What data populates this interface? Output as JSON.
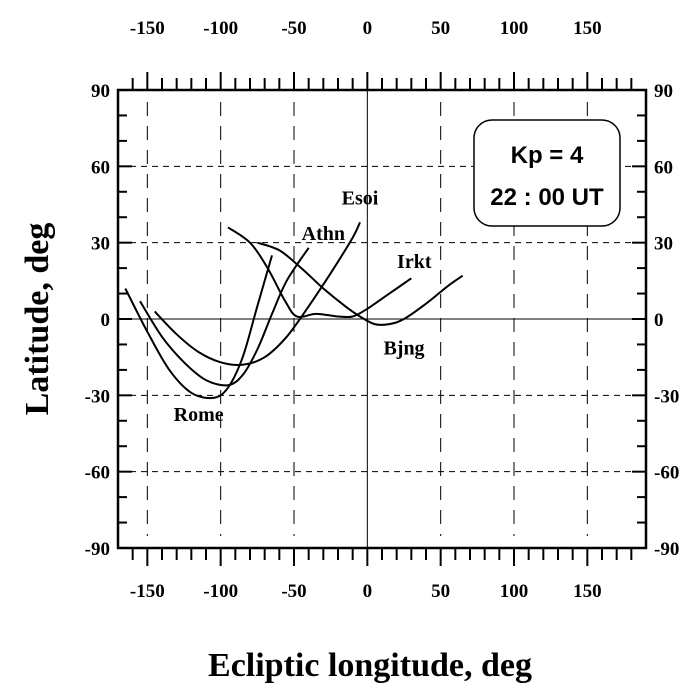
{
  "chart_data": {
    "type": "line",
    "xlabel": "Ecliptic longitude, deg",
    "ylabel": "Latitude, deg",
    "xlim": [
      -170,
      190
    ],
    "ylim": [
      -90,
      90
    ],
    "xticks": [
      -150,
      -100,
      -50,
      0,
      50,
      100,
      150
    ],
    "yticks": [
      -90,
      -60,
      -30,
      0,
      30,
      60,
      90
    ],
    "annotation": {
      "line1": "Kp = 4",
      "line2": "22 : 00 UT"
    },
    "series": [
      {
        "name": "Rome",
        "label": {
          "x": -115,
          "y": -40
        },
        "x": [
          -165,
          -150,
          -135,
          -120,
          -105,
          -95,
          -85,
          -75,
          -65
        ],
        "y": [
          12,
          -5,
          -20,
          -29,
          -31,
          -27,
          -15,
          5,
          25
        ]
      },
      {
        "name": "Athn",
        "label": {
          "x": -30,
          "y": 31
        },
        "x": [
          -155,
          -140,
          -125,
          -110,
          -95,
          -85,
          -75,
          -65,
          -55,
          -40
        ],
        "y": [
          7,
          -7,
          -17,
          -24,
          -26,
          -22,
          -12,
          2,
          15,
          28
        ]
      },
      {
        "name": "Esoi",
        "label": {
          "x": -5,
          "y": 45
        },
        "x": [
          -145,
          -130,
          -115,
          -100,
          -85,
          -70,
          -55,
          -40,
          -25,
          -10,
          -5
        ],
        "y": [
          3,
          -6,
          -13,
          -17,
          -18,
          -15,
          -7,
          5,
          18,
          32,
          38
        ]
      },
      {
        "name": "Irkt",
        "label": {
          "x": 32,
          "y": 20
        },
        "x": [
          -95,
          -80,
          -68,
          -56,
          -48,
          -35,
          -20,
          -10,
          0,
          15,
          30
        ],
        "y": [
          36,
          30,
          20,
          7,
          1,
          2,
          1,
          1,
          4,
          10,
          16
        ]
      },
      {
        "name": "Bjng",
        "label": {
          "x": 25,
          "y": -14
        },
        "x": [
          -75,
          -60,
          -45,
          -30,
          -15,
          -5,
          5,
          15,
          25,
          40,
          55,
          65
        ],
        "y": [
          30,
          27,
          20,
          12,
          5,
          1,
          -2,
          -2,
          0,
          6,
          13,
          17
        ]
      }
    ]
  }
}
